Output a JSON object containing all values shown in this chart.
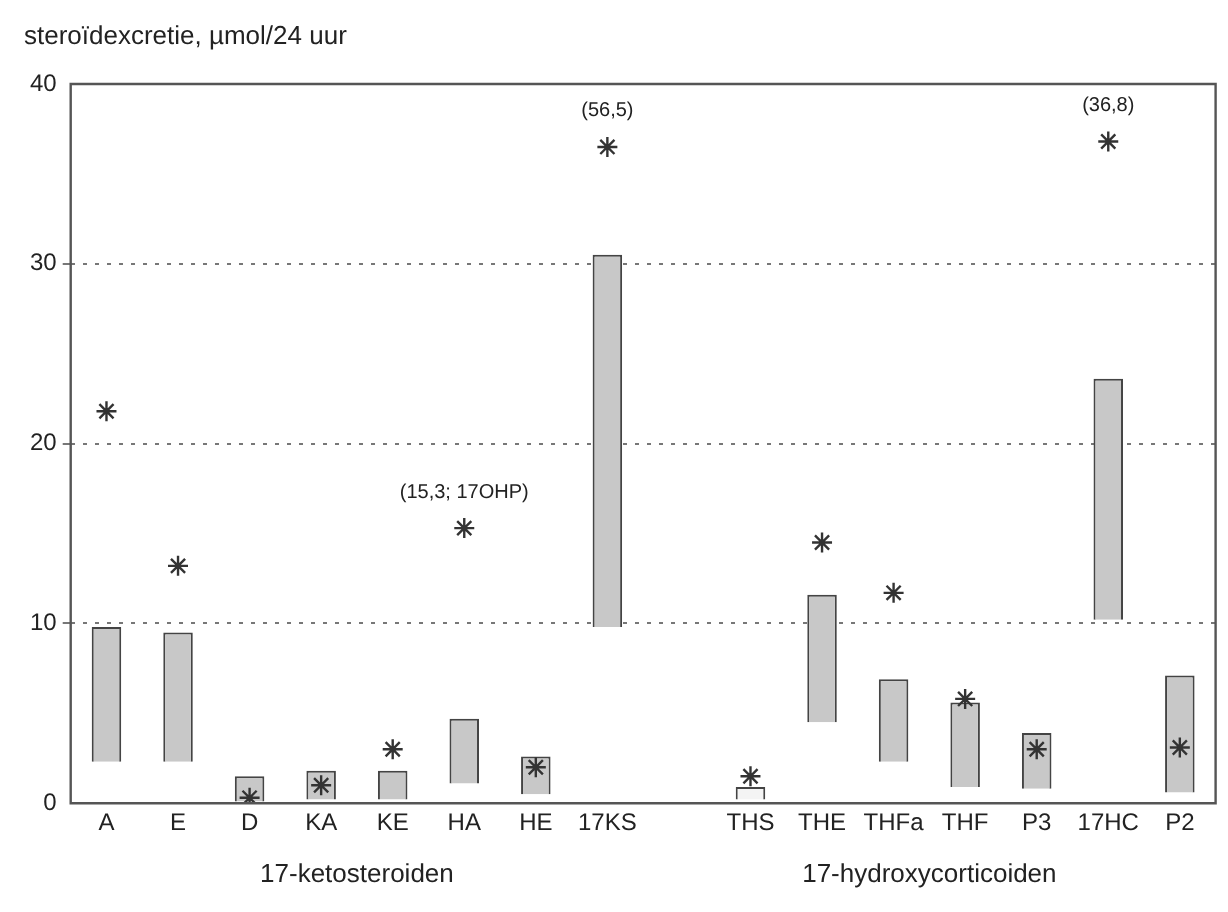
{
  "chart_data": {
    "type": "bar",
    "ylabel": "steroïdexcretie, µmol/24 uur",
    "categories": [
      "A",
      "E",
      "D",
      "KA",
      "KE",
      "HA",
      "HE",
      "17KS",
      null,
      "THS",
      "THE",
      "THFa",
      "THF",
      "P3",
      "17HC",
      "P2"
    ],
    "series": [
      {
        "type": "bar",
        "color": "#c8c8c8",
        "colors": [
          "#c8c8c8",
          "#c8c8c8",
          "#c8c8c8",
          "#c8c8c8",
          "#c8c8c8",
          "#c8c8c8",
          "#c8c8c8",
          "#c8c8c8",
          null,
          "#f4f4f4",
          "#c8c8c8",
          "#c8c8c8",
          "#c8c8c8",
          "#c8c8c8",
          "#c8c8c8",
          "#c8c8c8"
        ],
        "base": [
          2.3,
          2.3,
          0.1,
          0.2,
          0.2,
          1.1,
          0.5,
          9.8,
          null,
          0.2,
          4.5,
          2.3,
          0.9,
          0.8,
          10.2,
          0.6
        ],
        "values": [
          7.5,
          7.2,
          1.4,
          1.6,
          1.6,
          3.6,
          2.1,
          20.7,
          null,
          0.7,
          7.1,
          4.6,
          4.7,
          3.1,
          13.4,
          6.5
        ]
      },
      {
        "type": "scatter",
        "color": "#333333",
        "marker": "cross",
        "values": [
          21.8,
          13.2,
          0.3,
          1.0,
          3.0,
          15.3,
          2.0,
          36.5,
          null,
          1.5,
          14.5,
          11.7,
          5.8,
          3.0,
          36.8,
          3.1
        ]
      }
    ],
    "ylim": [
      0,
      40
    ],
    "yticks": [
      0,
      10,
      20,
      30,
      40
    ],
    "grid": "y",
    "line_style": "dotted",
    "legend": false,
    "annotations": [
      {
        "text": "(56,5)",
        "x": "17KS",
        "y": 36.5
      },
      {
        "text": "(15,3; 17OHP)",
        "x": "HA",
        "y": 15.3
      },
      {
        "text": "(36,8)",
        "x": "17HC",
        "y": 36.8
      },
      "17-ketosteroiden",
      "17-hydroxycorticoiden"
    ]
  }
}
